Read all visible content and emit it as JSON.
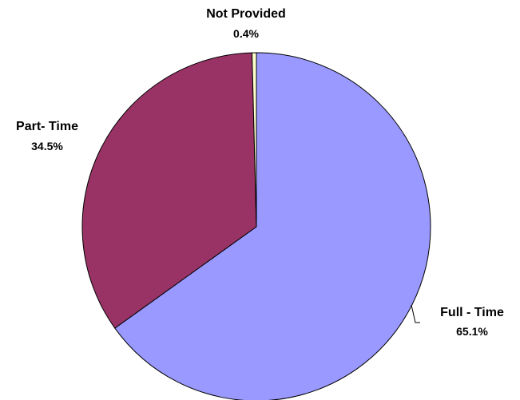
{
  "chart_data": {
    "type": "pie",
    "title": "",
    "slices": [
      {
        "label": "Full - Time",
        "value": 65.1,
        "value_label": "65.1%",
        "color": "#9999ff"
      },
      {
        "label": "Part- Time",
        "value": 34.5,
        "value_label": "34.5%",
        "color": "#993366"
      },
      {
        "label": "Not Provided",
        "value": 0.4,
        "value_label": "0.4%",
        "color": "#ffffcc"
      }
    ],
    "start_position": "12 o'clock",
    "direction": "clockwise",
    "legend": "none",
    "data_labels": "outside with category name and percent"
  }
}
